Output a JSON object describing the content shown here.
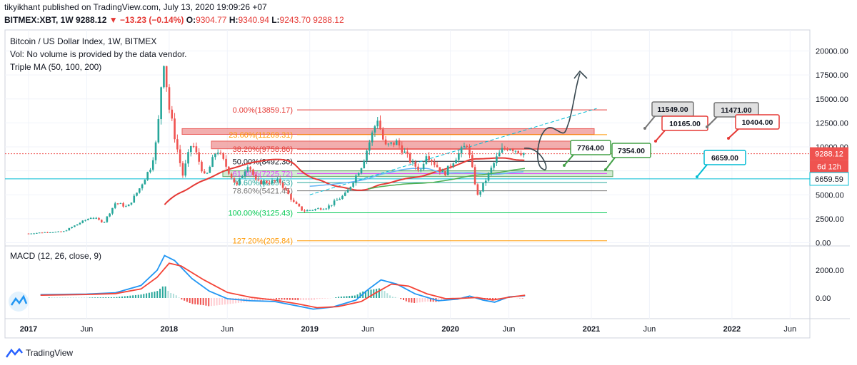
{
  "header": {
    "publisher_line": "tikyikhant published on TradingView.com, July 13, 2020 19:09:26 +07",
    "symbol": "BITMEX:XBT, 1W",
    "last": "9288.12",
    "change": "−13.23 (−0.14%)",
    "open_label": "O:",
    "open": "9304.77",
    "high_label": "H:",
    "high": "9340.94",
    "low_label": "L:",
    "low": "9243.70",
    "close": "9288.12"
  },
  "legend": {
    "title": "Bitcoin / US Dollar Index, 1W, BITMEX",
    "vol": "Vol: No volume is provided by the data vendor.",
    "ma": "Triple MA (50, 100, 200)",
    "macd": "MACD (12, 26, close, 9)"
  },
  "footer": {
    "brand": "TradingView"
  },
  "colors": {
    "up": "#26a69a",
    "down": "#ef5350",
    "ma_red": "#e53935",
    "ma_blue": "#64b5f6",
    "cyan": "#00bcd4",
    "green": "#4caf50",
    "fib_green": "#00c853",
    "fib_orange": "#ff9800"
  },
  "chart_data": [
    {
      "type": "candlestick",
      "title": "Bitcoin / US Dollar Index, 1W, BITMEX",
      "ylim": [
        0,
        21200
      ],
      "y_ticks": [
        "20000.00",
        "17500.00",
        "15000.00",
        "12500.00",
        "10000.00",
        "7500.00",
        "5000.00",
        "2500.00",
        "0.00"
      ],
      "x_ticks": [
        "2017",
        "Jun",
        "2018",
        "Jun",
        "2019",
        "Jun",
        "2020",
        "Jun",
        "2021",
        "Jun",
        "2022",
        "Jun"
      ],
      "price_path": [
        [
          "2017-01-01",
          960
        ],
        [
          "2017-02-15",
          1100
        ],
        [
          "2017-04-01",
          1150
        ],
        [
          "2017-05-20",
          2200
        ],
        [
          "2017-06-15",
          2700
        ],
        [
          "2017-07-15",
          2100
        ],
        [
          "2017-08-15",
          4200
        ],
        [
          "2017-09-15",
          3700
        ],
        [
          "2017-10-15",
          5600
        ],
        [
          "2017-11-15",
          8000
        ],
        [
          "2017-12-01",
          11000
        ],
        [
          "2017-12-17",
          19500
        ],
        [
          "2018-01-01",
          14000
        ],
        [
          "2018-02-05",
          7000
        ],
        [
          "2018-03-01",
          10500
        ],
        [
          "2018-04-05",
          6700
        ],
        [
          "2018-05-05",
          9800
        ],
        [
          "2018-06-25",
          5900
        ],
        [
          "2018-07-25",
          8300
        ],
        [
          "2018-08-15",
          6300
        ],
        [
          "2018-10-15",
          6400
        ],
        [
          "2018-11-20",
          4200
        ],
        [
          "2018-12-15",
          3300
        ],
        [
          "2019-02-15",
          3700
        ],
        [
          "2019-04-05",
          5100
        ],
        [
          "2019-05-15",
          8000
        ],
        [
          "2019-06-26",
          13000
        ],
        [
          "2019-07-15",
          10000
        ],
        [
          "2019-08-15",
          10500
        ],
        [
          "2019-09-25",
          8200
        ],
        [
          "2019-10-20",
          7500
        ],
        [
          "2019-10-27",
          9500
        ],
        [
          "2019-12-15",
          7100
        ],
        [
          "2020-01-15",
          8900
        ],
        [
          "2020-02-13",
          10300
        ],
        [
          "2020-03-12",
          4900
        ],
        [
          "2020-04-05",
          6800
        ],
        [
          "2020-05-01",
          8900
        ],
        [
          "2020-05-15",
          9700
        ],
        [
          "2020-06-01",
          10000
        ],
        [
          "2020-07-13",
          9288
        ]
      ],
      "last_price_label": "9288.12",
      "countdown_label": "6d 12h",
      "horizontal_level_label": "6659.59",
      "fib_levels": [
        {
          "label": "0.00%(13859.17)",
          "value": 13859.17
        },
        {
          "label": "23.60%(11269.31)",
          "value": 11269.31
        },
        {
          "label": "38.20%(9758.86)",
          "value": 9758.86
        },
        {
          "label": "50.00%(8492.30)",
          "value": 8492.3
        },
        {
          "label": "61.80%(7225.72)",
          "value": 7225.72
        },
        {
          "label": "70.60%(6269.63)",
          "value": 6269.63
        },
        {
          "label": "78.60%(5421.45)",
          "value": 5421.45
        },
        {
          "label": "100.00%(3125.43)",
          "value": 3125.43
        },
        {
          "label": "127.20%(205.84)",
          "value": 205.84
        }
      ],
      "zones": [
        {
          "name": "resistance-zone-upper",
          "from": 11300,
          "to": 11900
        },
        {
          "name": "resistance-zone-lower",
          "from": 9800,
          "to": 10600
        },
        {
          "name": "support-zone",
          "from": 6900,
          "to": 7500
        }
      ],
      "callouts": [
        "11549.00",
        "10165.00",
        "11471.00",
        "10404.00",
        "7764.00",
        "7354.00",
        "6659.00"
      ]
    },
    {
      "type": "line",
      "title": "MACD (12, 26, close, 9)",
      "y_ticks": [
        "2000.00",
        "0.00"
      ],
      "ylim": [
        -900,
        3300
      ],
      "macd": [
        [
          "2017-02-01",
          240
        ],
        [
          "2017-06-01",
          280
        ],
        [
          "2017-08-15",
          380
        ],
        [
          "2017-10-20",
          900
        ],
        [
          "2017-12-01",
          2000
        ],
        [
          "2017-12-20",
          3050
        ],
        [
          "2018-01-15",
          2700
        ],
        [
          "2018-03-01",
          1400
        ],
        [
          "2018-04-15",
          500
        ],
        [
          "2018-06-01",
          -50
        ],
        [
          "2018-08-01",
          -200
        ],
        [
          "2018-10-01",
          -250
        ],
        [
          "2018-12-01",
          -580
        ],
        [
          "2019-01-10",
          -800
        ],
        [
          "2019-03-01",
          -650
        ],
        [
          "2019-05-01",
          -150
        ],
        [
          "2019-06-01",
          600
        ],
        [
          "2019-07-05",
          1300
        ],
        [
          "2019-08-15",
          1000
        ],
        [
          "2019-10-01",
          300
        ],
        [
          "2019-12-01",
          -200
        ],
        [
          "2020-01-20",
          -80
        ],
        [
          "2020-02-20",
          140
        ],
        [
          "2020-03-25",
          -150
        ],
        [
          "2020-04-25",
          -300
        ],
        [
          "2020-06-01",
          80
        ],
        [
          "2020-07-13",
          160
        ]
      ],
      "signal": [
        [
          "2017-02-01",
          200
        ],
        [
          "2017-06-01",
          250
        ],
        [
          "2017-08-15",
          320
        ],
        [
          "2017-10-20",
          650
        ],
        [
          "2017-12-01",
          1500
        ],
        [
          "2018-01-01",
          2500
        ],
        [
          "2018-02-01",
          2300
        ],
        [
          "2018-04-01",
          1300
        ],
        [
          "2018-06-01",
          400
        ],
        [
          "2018-08-01",
          50
        ],
        [
          "2018-10-01",
          -150
        ],
        [
          "2018-12-01",
          -420
        ],
        [
          "2019-01-20",
          -700
        ],
        [
          "2019-03-15",
          -620
        ],
        [
          "2019-05-15",
          -250
        ],
        [
          "2019-06-20",
          350
        ],
        [
          "2019-08-01",
          1000
        ],
        [
          "2019-09-15",
          850
        ],
        [
          "2019-11-01",
          300
        ],
        [
          "2019-12-20",
          -50
        ],
        [
          "2020-02-01",
          -20
        ],
        [
          "2020-03-10",
          30
        ],
        [
          "2020-04-20",
          -150
        ],
        [
          "2020-06-01",
          50
        ],
        [
          "2020-07-13",
          200
        ]
      ]
    }
  ]
}
